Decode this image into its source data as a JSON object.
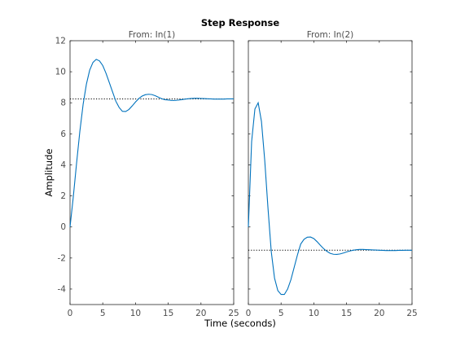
{
  "chart_data": {
    "type": "line",
    "title": "Step Response",
    "xlabel": "Time (seconds)",
    "ylabel": "Amplitude",
    "xlim": [
      0,
      25
    ],
    "ylim": [
      -5,
      12
    ],
    "xticks": [
      0,
      5,
      10,
      15,
      20,
      25
    ],
    "yticks": [
      -4,
      -2,
      0,
      2,
      4,
      6,
      8,
      10,
      12
    ],
    "grid": false,
    "line_color": "#0072BD",
    "steady_state_color": "#000000",
    "panels": [
      {
        "subtitle": "From: In(1)",
        "steady_state": 8.25,
        "x": [
          0,
          0.5,
          1,
          1.5,
          2,
          2.5,
          3,
          3.5,
          4,
          4.5,
          5,
          5.5,
          6,
          6.5,
          7,
          7.5,
          8,
          8.5,
          9,
          9.5,
          10,
          10.5,
          11,
          11.5,
          12,
          12.5,
          13,
          13.5,
          14,
          14.5,
          15,
          15.5,
          16,
          16.5,
          17,
          17.5,
          18,
          18.5,
          19,
          19.5,
          20,
          20.5,
          21,
          21.5,
          22,
          22.5,
          23,
          23.5,
          24,
          24.5,
          25
        ],
        "y": [
          0,
          1.94,
          4.11,
          6.16,
          7.9,
          9.2,
          10.1,
          10.6,
          10.8,
          10.7,
          10.4,
          9.9,
          9.3,
          8.7,
          8.1,
          7.7,
          7.45,
          7.44,
          7.57,
          7.8,
          8.05,
          8.27,
          8.43,
          8.52,
          8.55,
          8.53,
          8.46,
          8.36,
          8.26,
          8.2,
          8.18,
          8.15,
          8.15,
          8.17,
          8.2,
          8.23,
          8.26,
          8.28,
          8.29,
          8.29,
          8.28,
          8.27,
          8.26,
          8.25,
          8.24,
          8.24,
          8.24,
          8.24,
          8.25,
          8.25,
          8.25
        ]
      },
      {
        "subtitle": "From: In(2)",
        "steady_state": -1.5,
        "x": [
          0,
          0.5,
          1,
          1.5,
          2,
          2.5,
          3,
          3.5,
          4,
          4.5,
          5,
          5.5,
          6,
          6.5,
          7,
          7.5,
          8,
          8.5,
          9,
          9.5,
          10,
          10.5,
          11,
          11.5,
          12,
          12.5,
          13,
          13.5,
          14,
          14.5,
          15,
          15.5,
          16,
          16.5,
          17,
          17.5,
          18,
          18.5,
          19,
          19.5,
          20,
          20.5,
          21,
          21.5,
          22,
          22.5,
          23,
          23.5,
          24,
          24.5,
          25
        ],
        "y": [
          0,
          5.5,
          7.6,
          8.0,
          6.8,
          4.3,
          1.2,
          -1.6,
          -3.3,
          -4.1,
          -4.35,
          -4.35,
          -4.0,
          -3.4,
          -2.6,
          -1.8,
          -1.1,
          -0.8,
          -0.66,
          -0.65,
          -0.75,
          -0.95,
          -1.18,
          -1.4,
          -1.57,
          -1.7,
          -1.76,
          -1.77,
          -1.74,
          -1.68,
          -1.61,
          -1.55,
          -1.5,
          -1.47,
          -1.45,
          -1.45,
          -1.46,
          -1.47,
          -1.48,
          -1.49,
          -1.5,
          -1.51,
          -1.52,
          -1.52,
          -1.52,
          -1.52,
          -1.51,
          -1.51,
          -1.5,
          -1.5,
          -1.5
        ]
      }
    ]
  }
}
